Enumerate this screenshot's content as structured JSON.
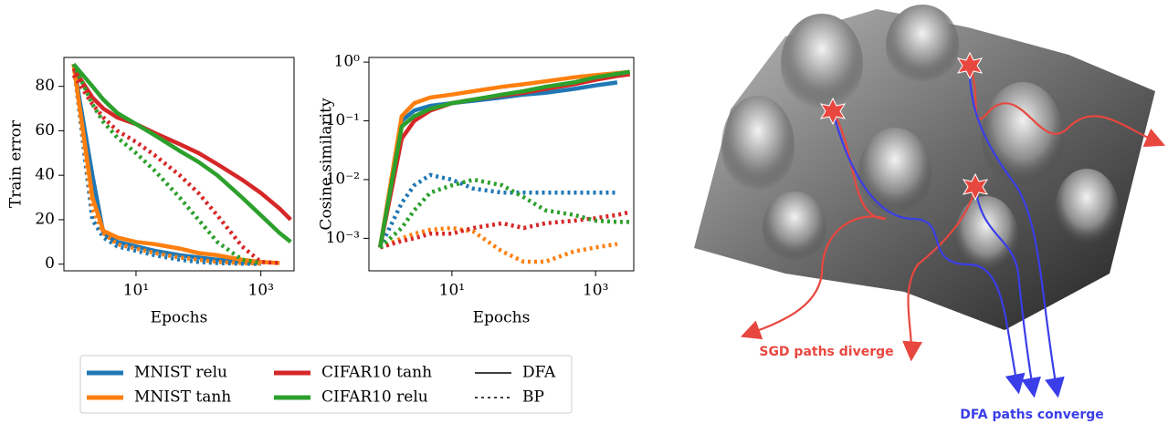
{
  "chart_data": [
    {
      "type": "line",
      "xlabel": "Epochs",
      "ylabel": "Train error",
      "xscale": "log",
      "x": [
        1,
        2,
        3,
        5,
        10,
        20,
        50,
        100,
        200,
        500,
        1000,
        2000,
        3000
      ],
      "xlim": [
        0.7,
        3400
      ],
      "xticks": [
        {
          "value": 10,
          "label": "10¹"
        },
        {
          "value": 1000,
          "label": "10³"
        }
      ],
      "ylim": [
        -3,
        93
      ],
      "yticks": [
        0,
        20,
        40,
        60,
        80
      ],
      "series": [
        {
          "name": "MNIST relu",
          "color": "#1f77b4",
          "values": [
            [
              90,
              40,
              14,
              10,
              8,
              6,
              4,
              3,
              2,
              1,
              0.5,
              null,
              null
            ],
            [
              90,
              20,
              12,
              8,
              6,
              4,
              2,
              1,
              0.5,
              0.2,
              0.1,
              null,
              null
            ]
          ]
        },
        {
          "name": "MNIST tanh",
          "color": "#ff7f0e",
          "values": [
            [
              90,
              30,
              15,
              12,
              10,
              9,
              7,
              5,
              4,
              2,
              1,
              0.5,
              null
            ],
            [
              90,
              25,
              14,
              9,
              7,
              5,
              3,
              2,
              1,
              0.5,
              0.3,
              null,
              null
            ]
          ]
        },
        {
          "name": "CIFAR10 tanh",
          "color": "#d62728",
          "values": [
            [
              88,
              75,
              70,
              66,
              63,
              59,
              54,
              50,
              45,
              38,
              32,
              25,
              20
            ],
            [
              85,
              72,
              66,
              60,
              55,
              49,
              40,
              32,
              22,
              8,
              1,
              0.5,
              null
            ]
          ]
        },
        {
          "name": "CIFAR10 relu",
          "color": "#2ca02c",
          "values": [
            [
              90,
              80,
              74,
              68,
              63,
              58,
              51,
              46,
              40,
              30,
              22,
              14,
              10
            ],
            [
              90,
              72,
              64,
              57,
              50,
              42,
              30,
              20,
              10,
              2,
              0.5,
              null,
              null
            ]
          ]
        }
      ]
    },
    {
      "type": "line",
      "xlabel": "Epochs",
      "ylabel": "Cosine similarity",
      "xscale": "log",
      "yscale": "log",
      "x": [
        1,
        2,
        3,
        5,
        10,
        20,
        50,
        100,
        200,
        500,
        1000,
        2000,
        3000
      ],
      "xlim": [
        0.7,
        3400
      ],
      "xticks": [
        {
          "value": 10,
          "label": "10¹"
        },
        {
          "value": 1000,
          "label": "10³"
        }
      ],
      "ylim": [
        0.00028,
        1.2
      ],
      "yticks": [
        {
          "value": 0.001,
          "label": "10⁻³"
        },
        {
          "value": 0.01,
          "label": "10⁻²"
        },
        {
          "value": 0.1,
          "label": "10⁻¹"
        },
        {
          "value": 1,
          "label": "10⁰"
        }
      ],
      "series": [
        {
          "name": "MNIST relu",
          "color": "#1f77b4",
          "values": [
            [
              0.0007,
              0.1,
              0.15,
              0.18,
              0.2,
              0.22,
              0.25,
              0.28,
              0.3,
              0.35,
              0.4,
              0.45,
              null
            ],
            [
              0.0007,
              0.004,
              0.008,
              0.012,
              0.01,
              0.007,
              0.006,
              0.006,
              0.006,
              0.006,
              0.006,
              0.006,
              null
            ]
          ]
        },
        {
          "name": "MNIST tanh",
          "color": "#ff7f0e",
          "values": [
            [
              0.0007,
              0.12,
              0.2,
              0.25,
              0.28,
              0.32,
              0.38,
              0.42,
              0.47,
              0.55,
              0.6,
              0.65,
              0.68
            ],
            [
              0.0007,
              0.001,
              0.0012,
              0.0014,
              0.0015,
              0.0013,
              0.0006,
              0.0004,
              0.0004,
              0.0006,
              0.0007,
              0.0008,
              null
            ]
          ]
        },
        {
          "name": "CIFAR10 tanh",
          "color": "#d62728",
          "values": [
            [
              0.0007,
              0.05,
              0.1,
              0.15,
              0.2,
              0.23,
              0.27,
              0.3,
              0.35,
              0.42,
              0.5,
              0.58,
              0.62
            ],
            [
              0.0007,
              0.0009,
              0.001,
              0.0012,
              0.0012,
              0.0015,
              0.0018,
              0.0015,
              0.0018,
              0.002,
              0.0022,
              0.0025,
              0.0028
            ]
          ]
        },
        {
          "name": "CIFAR10 relu",
          "color": "#2ca02c",
          "values": [
            [
              0.0007,
              0.08,
              0.12,
              0.16,
              0.2,
              0.23,
              0.28,
              0.32,
              0.38,
              0.45,
              0.55,
              0.63,
              0.68
            ],
            [
              0.0007,
              0.0015,
              0.003,
              0.006,
              0.008,
              0.01,
              0.008,
              0.005,
              0.003,
              0.0025,
              0.002,
              0.0019,
              0.0019
            ]
          ]
        }
      ]
    }
  ],
  "legend": {
    "styles": [
      {
        "label": "DFA",
        "dash": "solid"
      },
      {
        "label": "BP",
        "dash": "dotted"
      }
    ]
  },
  "illustration": {
    "sgd_label": "SGD paths diverge",
    "dfa_label": "DFA paths converge"
  }
}
